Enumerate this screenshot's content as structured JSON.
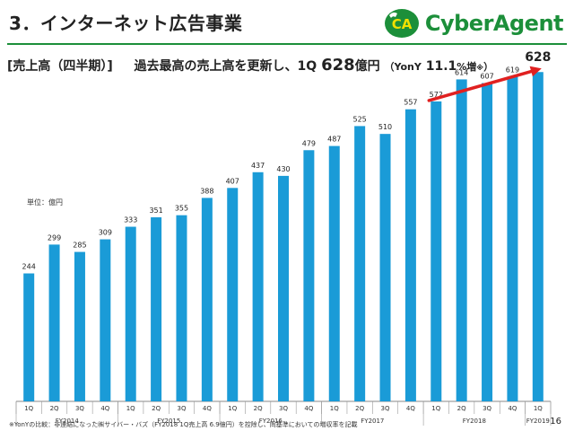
{
  "header": {
    "title": "3．インターネット広告事業",
    "logo_text": "CyberAgent",
    "logo_mark": "CA",
    "brand_color": "#1c8f3a"
  },
  "subtitle": {
    "section": "[売上高（四半期）]",
    "lead": "過去最高の売上高を更新し、1Q",
    "value": "628",
    "unit": "億円",
    "yoy_open": "（YonY",
    "yoy_value": "11.1",
    "yoy_unit": "%増",
    "yoy_mark": "※",
    "yoy_close": "）"
  },
  "unit_label": "単位：億円",
  "footnote": "※YonYの比較：非連結になった㈱サイバー・バズ（FY2018 1Q売上高 6.9億円）を控除し、同基準においての増収率を記載",
  "page_number": "16",
  "chart_data": {
    "type": "bar",
    "bar_color": "#1a9bd7",
    "arrow_color": "#e02020",
    "categories": [
      "1Q",
      "2Q",
      "3Q",
      "4Q",
      "1Q",
      "2Q",
      "3Q",
      "4Q",
      "1Q",
      "2Q",
      "3Q",
      "4Q",
      "1Q",
      "2Q",
      "3Q",
      "4Q",
      "1Q",
      "2Q",
      "3Q",
      "4Q",
      "1Q"
    ],
    "fiscal_years": [
      {
        "label": "FY2014",
        "count": 4
      },
      {
        "label": "FY2015",
        "count": 4
      },
      {
        "label": "FY2016",
        "count": 4
      },
      {
        "label": "FY2017",
        "count": 4
      },
      {
        "label": "FY2018",
        "count": 4
      },
      {
        "label": "FY2019",
        "count": 1
      }
    ],
    "values": [
      244,
      299,
      285,
      309,
      333,
      351,
      355,
      388,
      407,
      437,
      430,
      479,
      487,
      525,
      510,
      557,
      572,
      614,
      607,
      619,
      628
    ],
    "data_labels": [
      "244",
      "299",
      "285",
      "309",
      "333",
      "351",
      "355",
      "388",
      "407",
      "437",
      "430",
      "479",
      "487",
      "525",
      "510",
      "557",
      "572",
      "614",
      "607",
      "619",
      "628"
    ],
    "ylim": [
      0,
      650
    ],
    "grid": false
  }
}
